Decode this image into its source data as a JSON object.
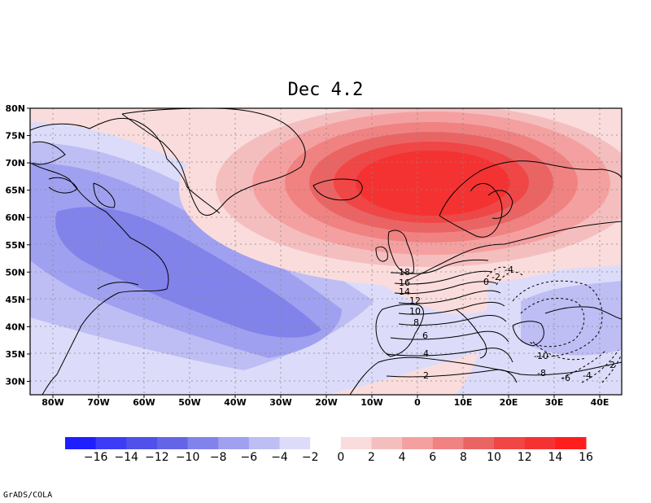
{
  "title": "Dec 4.2",
  "credit": "GrADS/COLA",
  "lat_labels": [
    "80N",
    "75N",
    "70N",
    "65N",
    "60N",
    "55N",
    "50N",
    "45N",
    "40N",
    "35N",
    "30N"
  ],
  "lon_labels": [
    "80W",
    "70W",
    "60W",
    "50W",
    "40W",
    "30W",
    "20W",
    "10W",
    "0",
    "10E",
    "20E",
    "30E",
    "40E"
  ],
  "colorbar": {
    "labels": [
      "-16",
      "-14",
      "-12",
      "-10",
      "-8",
      "-6",
      "-4",
      "-2",
      "0",
      "2",
      "4",
      "6",
      "8",
      "10",
      "12",
      "14",
      "16"
    ],
    "colors": [
      "#1e1eff",
      "#3c3cf5",
      "#5050eb",
      "#6464e6",
      "#8282eb",
      "#a0a0f0",
      "#bebef5",
      "#dcdcfa",
      "#ffffff",
      "#fadcdc",
      "#f5bebe",
      "#f5a0a0",
      "#f08282",
      "#eb6464",
      "#f04646",
      "#f53232",
      "#ff1e1e"
    ]
  },
  "contour_labels": {
    "positive": [
      "18",
      "16",
      "14",
      "12",
      "10",
      "8",
      "6",
      "4",
      "2"
    ],
    "negative": [
      "0",
      "-2",
      "-4",
      "-10",
      "-8",
      "-6",
      "-4",
      "-2"
    ]
  }
}
